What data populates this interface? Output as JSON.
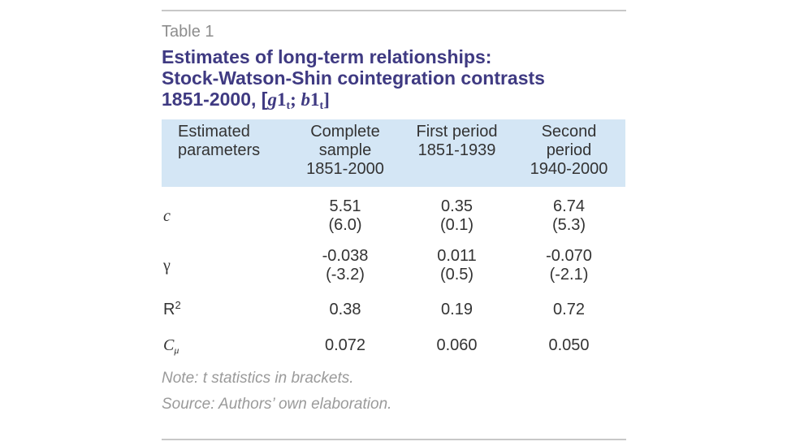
{
  "table_label": "Table 1",
  "title": {
    "line1": "Estimates of long-term relationships:",
    "line2": "Stock-Watson-Shin cointegration contrasts",
    "line3_prefix": "1851-2000, [",
    "g": "g",
    "g_num": "1",
    "g_sub": "t",
    "sep": "; ",
    "b": "b",
    "b_num": "1",
    "b_sub": "t",
    "close": "]"
  },
  "table": {
    "headers": [
      [
        "Estimated",
        "parameters",
        ""
      ],
      [
        "Complete",
        "sample",
        "1851-2000"
      ],
      [
        "First period",
        "1851-1939",
        ""
      ],
      [
        "Second",
        "period",
        "1940-2000"
      ]
    ],
    "rows": [
      {
        "param": "c",
        "values": [
          "5.51",
          "0.35",
          "6.74"
        ],
        "stats": [
          "(6.0)",
          "(0.1)",
          "(5.3)"
        ]
      },
      {
        "param": "γ",
        "values": [
          "-0.038",
          "0.011",
          "-0.070"
        ],
        "stats": [
          "(-3.2)",
          "(0.5)",
          "(-2.1)"
        ]
      },
      {
        "param": "R",
        "param_sup": "2",
        "values": [
          "0.38",
          "0.19",
          "0.72"
        ]
      },
      {
        "param": "C",
        "param_sub": "μ",
        "values": [
          "0.072",
          "0.060",
          "0.050"
        ]
      }
    ]
  },
  "note": "Note: t statistics in brackets.",
  "source": "Source: Authors’ own elaboration.",
  "colors": {
    "title": "#3f3a82",
    "header_bg": "#d4e6f5",
    "muted_text": "#9a9a9a",
    "rule": "#c8c8c8"
  }
}
